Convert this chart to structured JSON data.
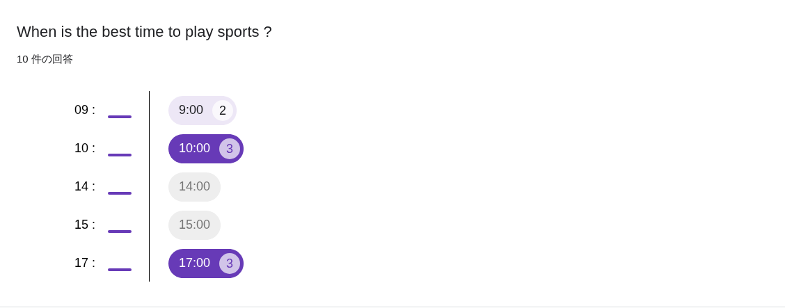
{
  "chart_data": {
    "type": "other",
    "title": "When is the best time to play sports ?",
    "subtitle": "10 件の回答",
    "y_categories": [
      "09 :",
      "10 :",
      "14 :",
      "15 :",
      "17 :"
    ],
    "categories": [
      "9:00",
      "10:00",
      "14:00",
      "15:00",
      "17:00"
    ],
    "values": [
      2,
      3,
      null,
      null,
      3
    ],
    "data_labels": true
  }
}
